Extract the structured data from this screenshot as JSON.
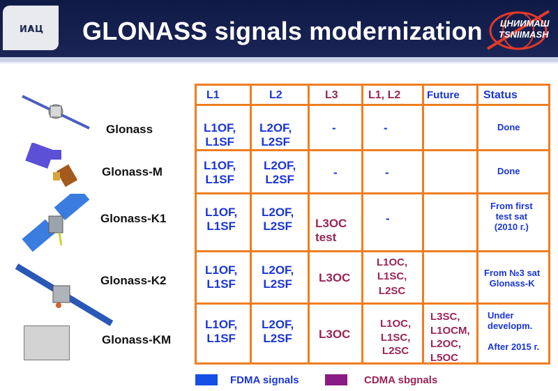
{
  "header": {
    "title": "GLONASS signals modernization",
    "logo_left_text": "ИАЦ",
    "logo_right_line1": "ЦНИИМАШ",
    "logo_right_line2": "TSNIIMASH"
  },
  "columns": [
    "L1",
    "L2",
    "L3",
    "L1, L2",
    "Future",
    "Status"
  ],
  "rows": [
    {
      "name": "Glonass",
      "l1": [
        "L1OF,",
        "L1SF"
      ],
      "l2": [
        "L2OF,",
        "L2SF"
      ],
      "l3": [
        "-"
      ],
      "l1l2": [
        "-"
      ],
      "future": [],
      "status": [
        "Done"
      ]
    },
    {
      "name": "Glonass-M",
      "l1": [
        "L1OF,",
        "L1SF"
      ],
      "l2": [
        "L2OF,",
        "L2SF"
      ],
      "l3": [
        "-"
      ],
      "l1l2": [
        "-"
      ],
      "future": [],
      "status": [
        "Done"
      ]
    },
    {
      "name": "Glonass-K1",
      "l1": [
        "L1OF,",
        "L1SF"
      ],
      "l2": [
        "L2OF,",
        "L2SF"
      ],
      "l3": [
        "L3OC",
        "test"
      ],
      "l1l2": [
        "-"
      ],
      "future": [],
      "status": [
        "From first",
        "test sat",
        "(2010 г.)"
      ]
    },
    {
      "name": "Glonass-K2",
      "l1": [
        "L1OF,",
        "L1SF"
      ],
      "l2": [
        "L2OF,",
        "L2SF"
      ],
      "l3": [
        "L3OC"
      ],
      "l1l2": [
        "L1OC,",
        "L1SC,",
        "L2SC"
      ],
      "future": [],
      "status": [
        "From №3 sat",
        "Glonass-K"
      ]
    },
    {
      "name": "Glonass-KM",
      "l1": [
        "L1OF,",
        "L1SF"
      ],
      "l2": [
        "L2OF,",
        "L2SF"
      ],
      "l3": [
        "L3OC"
      ],
      "l1l2": [
        "L1OC,",
        "L1SC,",
        "L2SC"
      ],
      "future": [
        "L3SC,",
        "L1OCM,",
        "L2OC,",
        "L5OC"
      ],
      "status": [
        "Under",
        "developm.",
        "",
        "After 2015 г."
      ]
    }
  ],
  "legend": [
    {
      "label": "FDMA signals",
      "color": "#1450e6"
    },
    {
      "label": "CDMA sbgnals",
      "color": "#8a1a86"
    }
  ],
  "colors": {
    "grid": "#f07d20",
    "fdma_text": "#1a35d6",
    "cdma_text": "#9a2456",
    "header_bg": "#141c4c"
  }
}
